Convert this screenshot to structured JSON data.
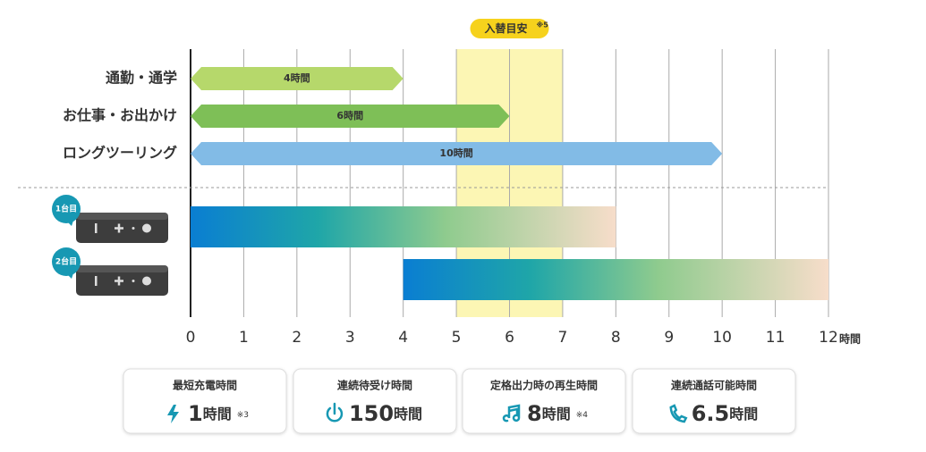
{
  "chart_data": {
    "type": "timeline",
    "x_unit": "時間",
    "xlim": [
      0,
      12
    ],
    "xticks": [
      0,
      1,
      2,
      3,
      4,
      5,
      6,
      7,
      8,
      9,
      10,
      11,
      12
    ],
    "grid": true,
    "highlight": {
      "label": "入替目安",
      "note": "※5",
      "range": [
        5,
        7
      ],
      "color": "#fcf6b4",
      "badge_color": "#f6d21d"
    },
    "usage": [
      {
        "name": "通勤・通学",
        "start": 0,
        "end": 4,
        "value_label": "4時間",
        "color": "#b6d86b"
      },
      {
        "name": "お仕事・お出かけ",
        "start": 0,
        "end": 6,
        "value_label": "6時間",
        "color": "#7ebf57"
      },
      {
        "name": "ロングツーリング",
        "start": 0,
        "end": 10,
        "value_label": "10時間",
        "color": "#82bbe6"
      }
    ],
    "devices": [
      {
        "name": "1台目",
        "start": 0,
        "end": 8
      },
      {
        "name": "2台目",
        "start": 4,
        "end": 12
      }
    ]
  },
  "specs": [
    {
      "title": "最短充電時間",
      "value": 1,
      "unit": "時間",
      "note": "※3"
    },
    {
      "title": "連続待受け時間",
      "value": 150,
      "unit": "時間"
    },
    {
      "title": "定格出力時の再生時間",
      "value": 8,
      "unit": "時間",
      "note": "※4"
    },
    {
      "title": "連続通話可能時間",
      "value": 6.5,
      "unit": "時間"
    }
  ]
}
